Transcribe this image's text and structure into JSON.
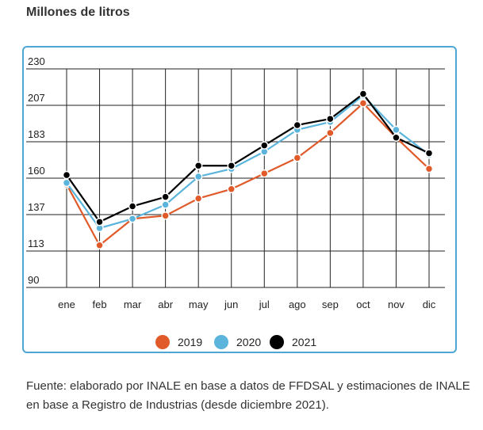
{
  "chart_data": {
    "type": "line",
    "ylabel": "Millones de litros",
    "categories": [
      "ene",
      "feb",
      "mar",
      "abr",
      "may",
      "jun",
      "jul",
      "ago",
      "sep",
      "oct",
      "nov",
      "dic"
    ],
    "ylim": [
      90,
      230
    ],
    "yticks": [
      "230",
      "207",
      "183",
      "160",
      "137",
      "113",
      "90"
    ],
    "grid": true,
    "legend_position": "bottom-center",
    "series": [
      {
        "name": "2019",
        "color": "#e05a2a",
        "values": [
          156,
          117,
          134,
          136,
          147,
          153,
          163,
          173,
          189,
          208,
          186,
          166
        ]
      },
      {
        "name": "2020",
        "color": "#5ab4dc",
        "values": [
          157,
          128,
          134,
          143,
          161,
          166,
          177,
          191,
          196,
          213,
          191,
          175
        ]
      },
      {
        "name": "2021",
        "color": "#000000",
        "values": [
          162,
          132,
          142,
          148,
          168,
          168,
          181,
          194,
          198,
          214,
          186,
          176
        ]
      }
    ]
  },
  "source_text": "Fuente: elaborado por INALE en base a datos de FFDSAL y estimaciones de INALE en base a Registro de Industrias (desde diciembre 2021)."
}
